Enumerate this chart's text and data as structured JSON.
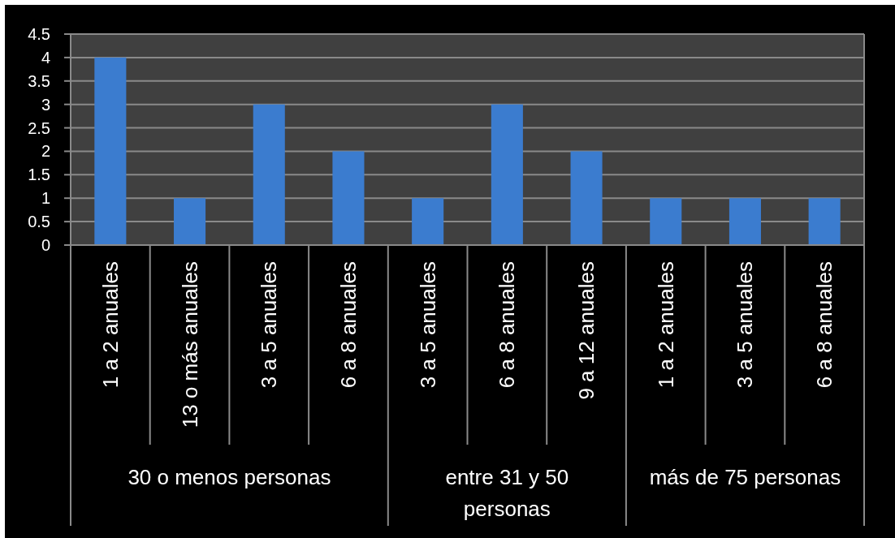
{
  "chart_data": {
    "type": "bar",
    "categories": [
      "1 a 2 anuales",
      "13 o más anuales",
      "3 a 5 anuales",
      "6 a 8 anuales",
      "3 a 5 anuales",
      "6 a 8 anuales",
      "9 a 12 anuales",
      "1 a 2 anuales",
      "3 a 5 anuales",
      "6 a 8 anuales"
    ],
    "values": [
      4,
      1,
      3,
      2,
      1,
      3,
      2,
      1,
      1,
      1
    ],
    "color": "#3b7ccf",
    "ylim": [
      0,
      4.5
    ],
    "yticks": [
      0,
      0.5,
      1,
      1.5,
      2,
      2.5,
      3,
      3.5,
      4,
      4.5
    ],
    "grid": "y",
    "annotations": [
      "30 o menos personas",
      "entre 31 y 50 personas",
      "más de 75 personas"
    ]
  }
}
